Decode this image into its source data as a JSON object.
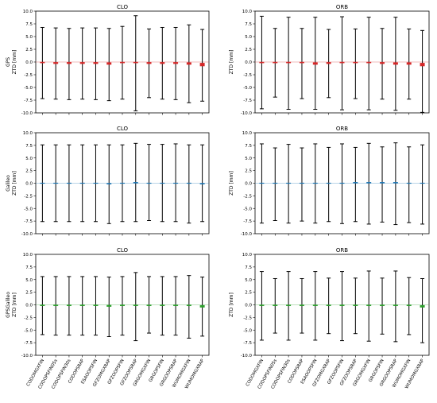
{
  "chart_data": {
    "type": "errorbar",
    "categories": [
      "CODOMGXFIN",
      "CODOPSFIN05s",
      "CODOPSFIN30s",
      "CODOPSRAP",
      "ESAOOPSFIN",
      "GFZOMGXRAP",
      "GFZOOPSFIN",
      "GFZOOPSRAP",
      "GRGOMGXFIN",
      "GRGOPSFIN",
      "GRGOOPSRAP",
      "WUMOMGXFIN",
      "WUMOMGXRAP"
    ],
    "ylim": [
      -10,
      10
    ],
    "yticks": [
      "10.0",
      "7.5",
      "5.0",
      "2.5",
      "0.0",
      "-2.5",
      "-5.0",
      "-7.5",
      "-10.0"
    ],
    "panels": [
      {
        "id": "gps-clo",
        "title": "CLO",
        "row_label": "GPS",
        "ylabel": "ZTD [mm]",
        "color": "#d62728",
        "mean": [
          -0.1,
          -0.2,
          -0.2,
          -0.2,
          -0.2,
          -0.3,
          -0.1,
          -0.1,
          -0.2,
          -0.2,
          -0.2,
          -0.3,
          -0.5
        ],
        "upper": [
          6.8,
          6.7,
          6.6,
          6.7,
          6.7,
          6.6,
          7.0,
          9.1,
          6.5,
          6.8,
          6.8,
          7.3,
          6.4
        ],
        "lower": [
          -7.2,
          -7.3,
          -7.4,
          -7.3,
          -7.4,
          -7.6,
          -7.3,
          -9.6,
          -7.0,
          -7.3,
          -7.4,
          -8.0,
          -7.7
        ]
      },
      {
        "id": "gps-orb",
        "title": "ORB",
        "row_label": "",
        "ylabel": "ZTD [mm]",
        "color": "#d62728",
        "mean": [
          -0.1,
          -0.1,
          -0.1,
          -0.1,
          -0.3,
          -0.2,
          -0.1,
          -0.1,
          -0.1,
          -0.2,
          -0.3,
          -0.3,
          -0.5
        ],
        "upper": [
          9.0,
          6.6,
          8.8,
          6.6,
          8.8,
          6.4,
          8.9,
          6.5,
          8.8,
          6.6,
          8.8,
          6.5,
          6.2
        ],
        "lower": [
          -9.2,
          -6.9,
          -9.3,
          -7.2,
          -9.3,
          -7.0,
          -9.4,
          -7.2,
          -9.4,
          -7.3,
          -9.5,
          -7.3,
          -9.9
        ]
      },
      {
        "id": "gal-clo",
        "title": "CLO",
        "row_label": "Galileo",
        "ylabel": "ZTD [mm]",
        "color": "#1f77b4",
        "mean": [
          0.0,
          0.0,
          0.0,
          0.0,
          0.0,
          -0.1,
          0.0,
          0.1,
          0.0,
          0.0,
          0.0,
          0.0,
          -0.1
        ],
        "upper": [
          7.6,
          7.6,
          7.6,
          7.6,
          7.6,
          7.6,
          7.6,
          7.9,
          7.7,
          7.7,
          7.8,
          7.6,
          7.6
        ],
        "lower": [
          -7.6,
          -7.6,
          -7.6,
          -7.6,
          -7.6,
          -8.0,
          -7.6,
          -7.6,
          -7.4,
          -7.6,
          -7.6,
          -7.9,
          -7.6
        ]
      },
      {
        "id": "gal-orb",
        "title": "ORB",
        "row_label": "",
        "ylabel": "ZTD [mm]",
        "color": "#1f77b4",
        "mean": [
          0.0,
          0.0,
          0.0,
          0.0,
          0.0,
          0.0,
          0.0,
          0.1,
          0.1,
          0.1,
          0.1,
          0.0,
          0.0
        ],
        "upper": [
          7.8,
          7.0,
          7.7,
          7.0,
          7.8,
          7.1,
          7.8,
          7.1,
          7.9,
          7.2,
          8.0,
          7.2,
          7.6
        ],
        "lower": [
          -7.9,
          -7.4,
          -7.9,
          -7.5,
          -7.9,
          -7.6,
          -8.0,
          -7.6,
          -8.1,
          -7.7,
          -8.2,
          -7.8,
          -8.1
        ]
      },
      {
        "id": "gpsgal-clo",
        "title": "CLO",
        "row_label": "GPSGalileo",
        "ylabel": "ZTD [mm]",
        "color": "#2ca02c",
        "mean": [
          -0.1,
          -0.1,
          -0.1,
          -0.1,
          -0.1,
          -0.2,
          -0.1,
          -0.1,
          -0.1,
          -0.1,
          -0.1,
          -0.1,
          -0.3
        ],
        "upper": [
          5.6,
          5.6,
          5.6,
          5.6,
          5.6,
          5.5,
          5.6,
          6.4,
          5.6,
          5.6,
          5.6,
          5.8,
          5.5
        ],
        "lower": [
          -5.9,
          -6.0,
          -6.0,
          -6.0,
          -6.0,
          -6.3,
          -6.0,
          -7.1,
          -5.6,
          -6.0,
          -6.0,
          -6.6,
          -6.2
        ]
      },
      {
        "id": "gpsgal-orb",
        "title": "ORB",
        "row_label": "",
        "ylabel": "ZTD [mm]",
        "color": "#2ca02c",
        "mean": [
          -0.1,
          -0.1,
          -0.1,
          -0.1,
          -0.1,
          -0.1,
          -0.1,
          -0.1,
          -0.1,
          -0.1,
          -0.1,
          -0.1,
          -0.3
        ],
        "upper": [
          6.6,
          5.2,
          6.6,
          5.2,
          6.6,
          5.3,
          6.6,
          5.3,
          6.7,
          5.3,
          6.7,
          5.4,
          5.2
        ],
        "lower": [
          -7.0,
          -5.6,
          -7.0,
          -5.6,
          -7.0,
          -5.7,
          -7.1,
          -5.7,
          -7.2,
          -5.8,
          -7.3,
          -5.9,
          -7.5
        ]
      }
    ]
  }
}
